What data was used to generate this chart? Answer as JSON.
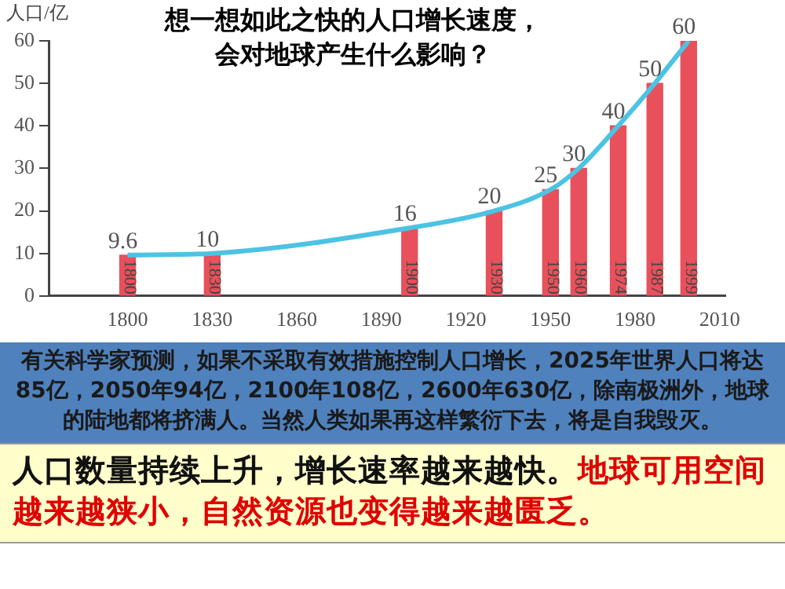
{
  "chart_data": {
    "type": "bar",
    "title": "想一想如此之快的人口增长速度，会对地球产生什么影响？",
    "ylabel": "人口/亿",
    "x": [
      1800,
      1830,
      1900,
      1930,
      1950,
      1960,
      1974,
      1987,
      1999
    ],
    "series": [
      {
        "color": "#e8505b",
        "values": [
          9.6,
          10,
          16,
          20,
          25,
          30,
          40,
          50,
          60
        ],
        "value_labels": [
          "9.6",
          "10",
          "16",
          "20",
          "25",
          "30",
          "40",
          "50",
          "60"
        ]
      },
      {
        "type": "line",
        "color": "#4cc3e3",
        "values": [
          9.6,
          10,
          16,
          20,
          25,
          30,
          40,
          50,
          60
        ]
      }
    ],
    "xlim": [
      1772,
      2012
    ],
    "xticks": [
      1800,
      1830,
      1860,
      1890,
      1920,
      1950,
      1980,
      2010
    ],
    "ylim": [
      0,
      60
    ],
    "yticks": [
      0,
      10,
      20,
      30,
      40,
      50,
      60
    ],
    "grid": false,
    "legend": false,
    "marker": "none",
    "annotations": [
      {
        "text": "1800",
        "x": 1800,
        "y": 0
      },
      {
        "text": "1830",
        "x": 1830,
        "y": 0
      },
      {
        "text": "1900",
        "x": 1900,
        "y": 0
      },
      {
        "text": "1930",
        "x": 1930,
        "y": 0
      },
      {
        "text": "1950",
        "x": 1950,
        "y": 0
      },
      {
        "text": "1960",
        "x": 1960,
        "y": 0
      },
      {
        "text": "1974",
        "x": 1974,
        "y": 0
      },
      {
        "text": "1987",
        "x": 1987,
        "y": 0
      },
      {
        "text": "1999",
        "x": 1999,
        "y": 0
      },
      "有关科学家预测，如果不采取有效措施控制人口增长，2025年世界人口将达85亿，2050年94亿，2100年108亿，2600年630亿，除南极洲外，地球的陆地都将挤满人。当然人类如果再这样繁衍下去，将是自我毁灭。",
      "人口数量持续上升，增长速率越来越快。",
      "地球可用空间越来越狭小，自然资源也变得越来越匮乏。"
    ]
  }
}
